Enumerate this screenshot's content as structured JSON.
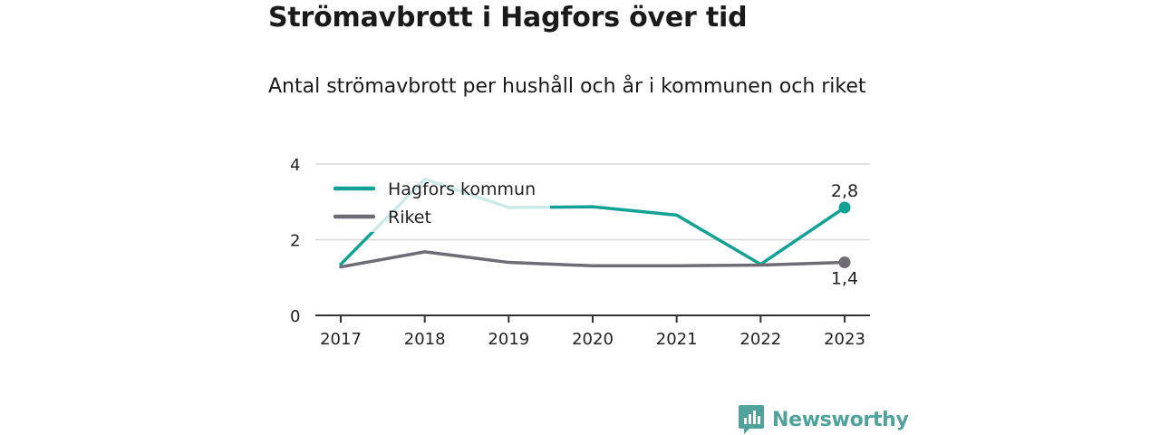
{
  "header": {
    "title": "Strömavbrott i Hagfors över tid",
    "subtitle": "Antal strömavbrott per hushåll och år i kommunen och riket"
  },
  "brand": {
    "name": "Newsworthy",
    "icon": "bar-chart-speech-bubble-icon"
  },
  "colors": {
    "hagfors": "#12a295",
    "riket": "#6f6c75",
    "grid": "#d9d9d9",
    "axis": "#333333"
  },
  "chart_data": {
    "type": "line",
    "title": "Strömavbrott i Hagfors över tid",
    "subtitle": "Antal strömavbrott per hushåll och år i kommunen och riket",
    "categories": [
      "2017",
      "2018",
      "2019",
      "2020",
      "2021",
      "2022",
      "2023"
    ],
    "ylim": [
      0,
      4
    ],
    "yticks": [
      0,
      2,
      4
    ],
    "grid": true,
    "legend": "top-left",
    "series": [
      {
        "name": "Hagfors kommun",
        "values": [
          1.35,
          3.6,
          2.85,
          2.87,
          2.65,
          1.35,
          2.85
        ],
        "end_label": "2,8",
        "color": "#12a295"
      },
      {
        "name": "Riket",
        "values": [
          1.28,
          1.68,
          1.4,
          1.31,
          1.31,
          1.33,
          1.4
        ],
        "end_label": "1,4",
        "color": "#6f6c75"
      }
    ]
  }
}
